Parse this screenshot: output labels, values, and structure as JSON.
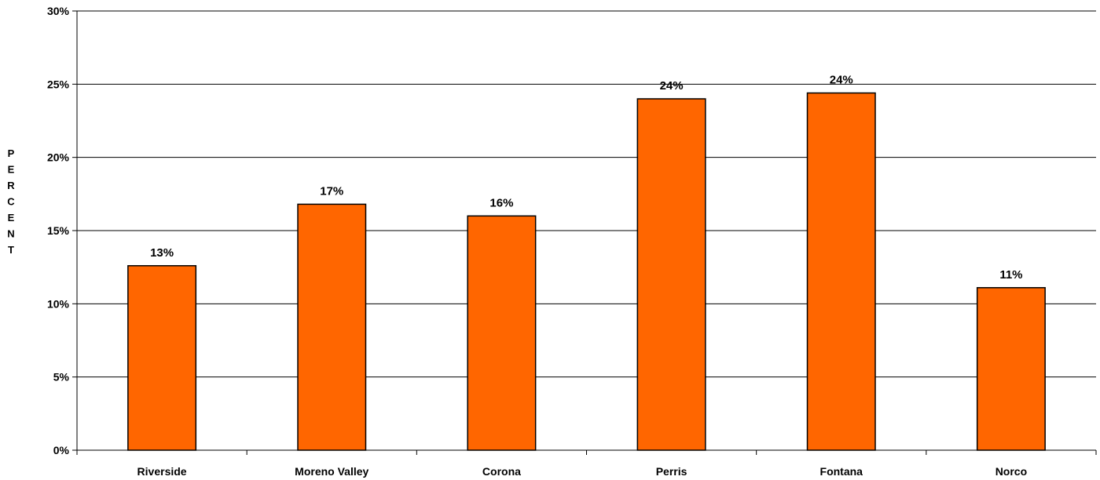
{
  "chart_data": {
    "type": "bar",
    "categories": [
      "Riverside",
      "Moreno Valley",
      "Corona",
      "Perris",
      "Fontana",
      "Norco"
    ],
    "values": [
      12.6,
      16.8,
      16.0,
      24.0,
      24.4,
      11.1
    ],
    "data_labels": [
      "13%",
      "17%",
      "16%",
      "24%",
      "24%",
      "11%"
    ],
    "title": "",
    "xlabel": "",
    "ylabel": "PERCENT",
    "ylim": [
      0,
      30
    ],
    "yticks": [
      0,
      5,
      10,
      15,
      20,
      25,
      30
    ],
    "ytick_labels": [
      "0%",
      "5%",
      "10%",
      "15%",
      "20%",
      "25%",
      "30%"
    ],
    "grid": true,
    "legend": "none",
    "colors": {
      "bar_fill": "#ff6600",
      "bar_stroke": "#000000",
      "gridline": "#000000",
      "axis": "#000000"
    }
  }
}
